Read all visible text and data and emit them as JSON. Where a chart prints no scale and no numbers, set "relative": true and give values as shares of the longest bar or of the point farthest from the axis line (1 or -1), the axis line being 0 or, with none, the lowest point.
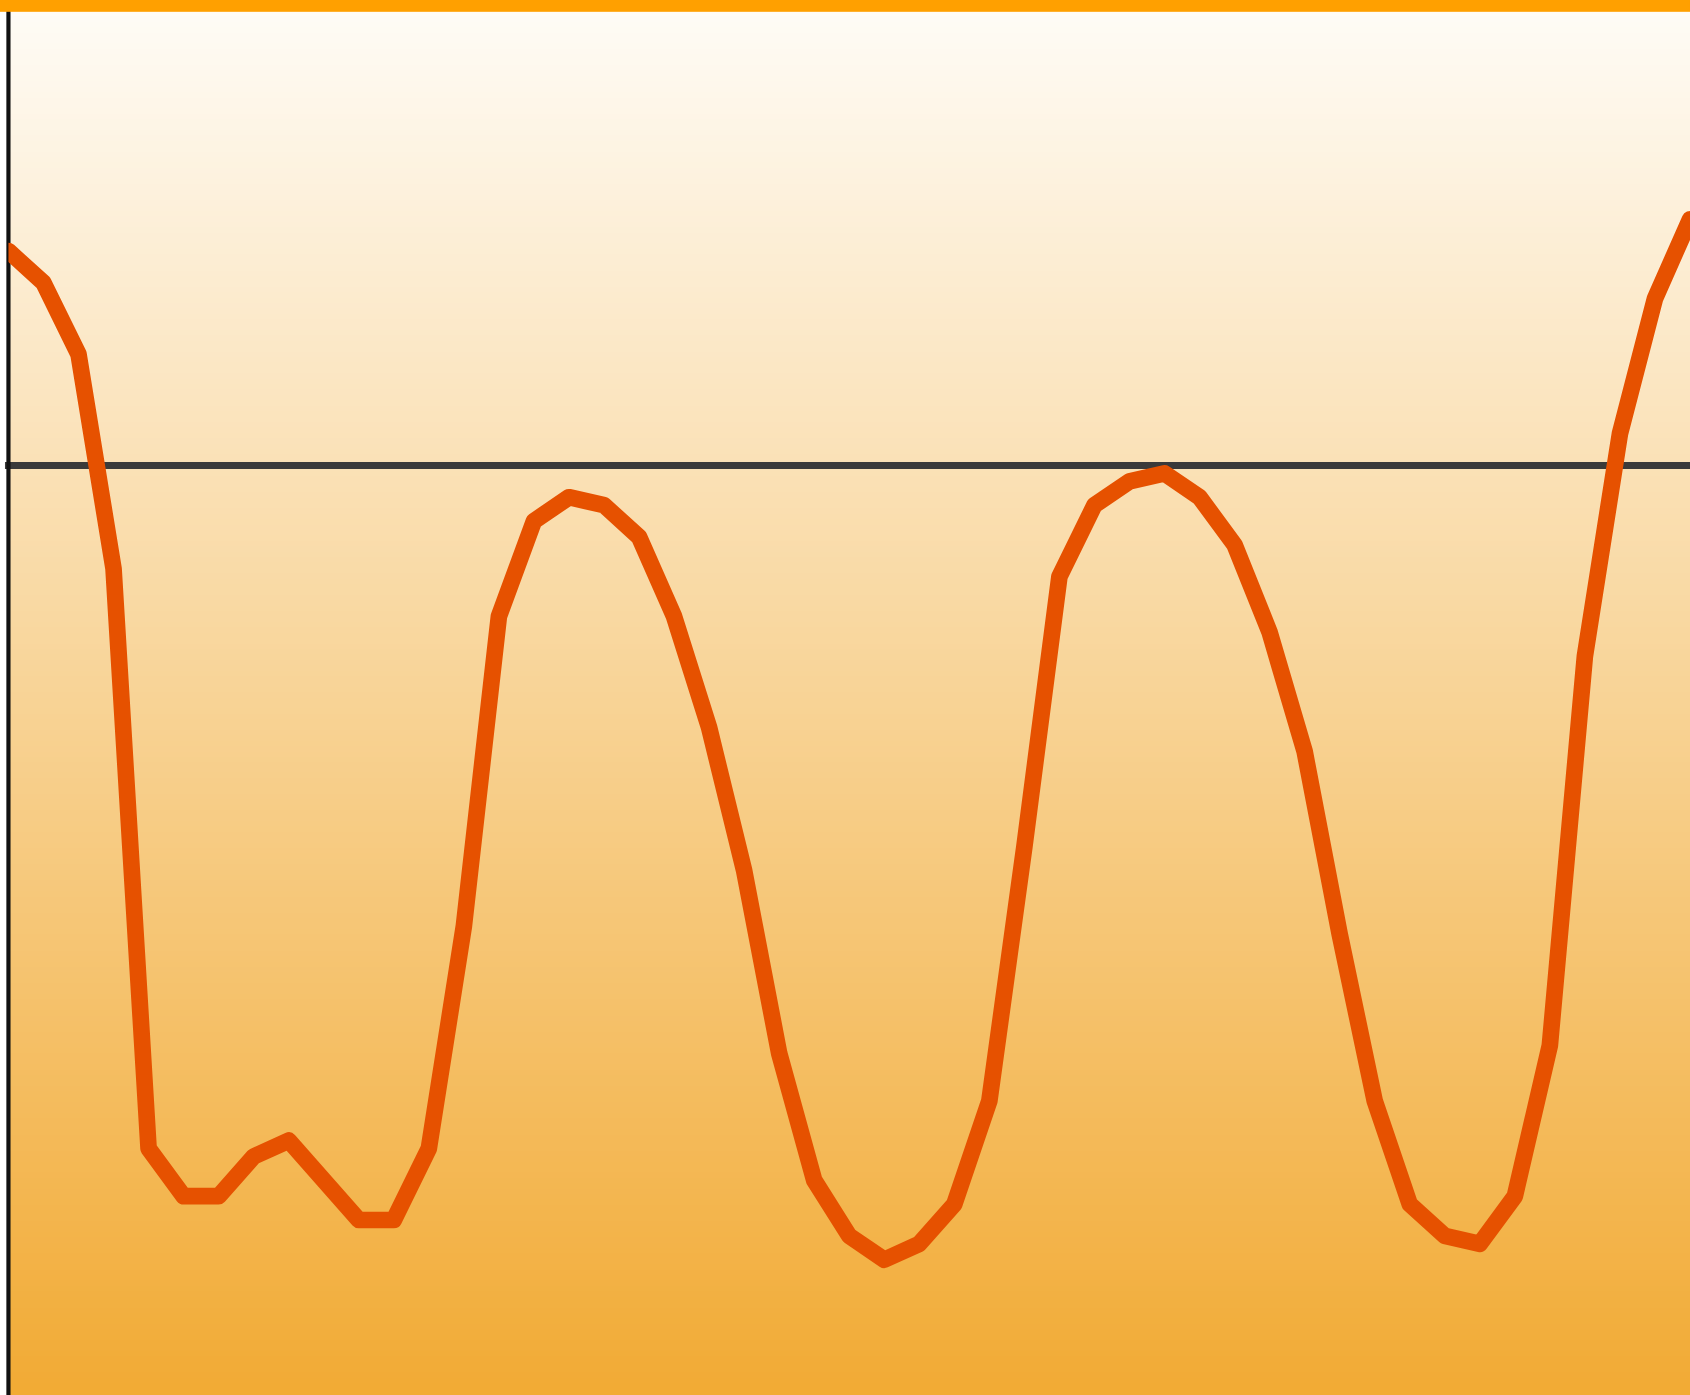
{
  "chart_data": {
    "type": "line",
    "relative": true,
    "marker": "none",
    "line_style": "solid",
    "categories": [
      null,
      null,
      null,
      null,
      null,
      null,
      null,
      null,
      null,
      null,
      null,
      null,
      null,
      null,
      null,
      null,
      null,
      null,
      null,
      null,
      null,
      null,
      null,
      null,
      null,
      null,
      null,
      null,
      null,
      null,
      null,
      null,
      null,
      null,
      null,
      null,
      null,
      null,
      null,
      null,
      null,
      null,
      null,
      null,
      null,
      null,
      null,
      null,
      null
    ],
    "series": [
      {
        "color": "#e65100",
        "values": [
          0.27,
          0.23,
          0.14,
          -0.13,
          -0.86,
          -0.92,
          -0.92,
          -0.87,
          -0.85,
          -0.9,
          -0.95,
          -0.95,
          -0.86,
          -0.58,
          -0.19,
          -0.07,
          -0.04,
          -0.05,
          -0.09,
          -0.19,
          -0.33,
          -0.51,
          -0.74,
          -0.9,
          -0.97,
          -1,
          -0.98,
          -0.93,
          -0.8,
          -0.48,
          -0.14,
          -0.05,
          -0.02,
          -0.01,
          -0.04,
          -0.1,
          -0.21,
          -0.36,
          -0.59,
          -0.8,
          -0.93,
          -0.97,
          -0.98,
          -0.92,
          -0.73,
          -0.24,
          0.04,
          0.21,
          0.31
        ]
      }
    ]
  }
}
